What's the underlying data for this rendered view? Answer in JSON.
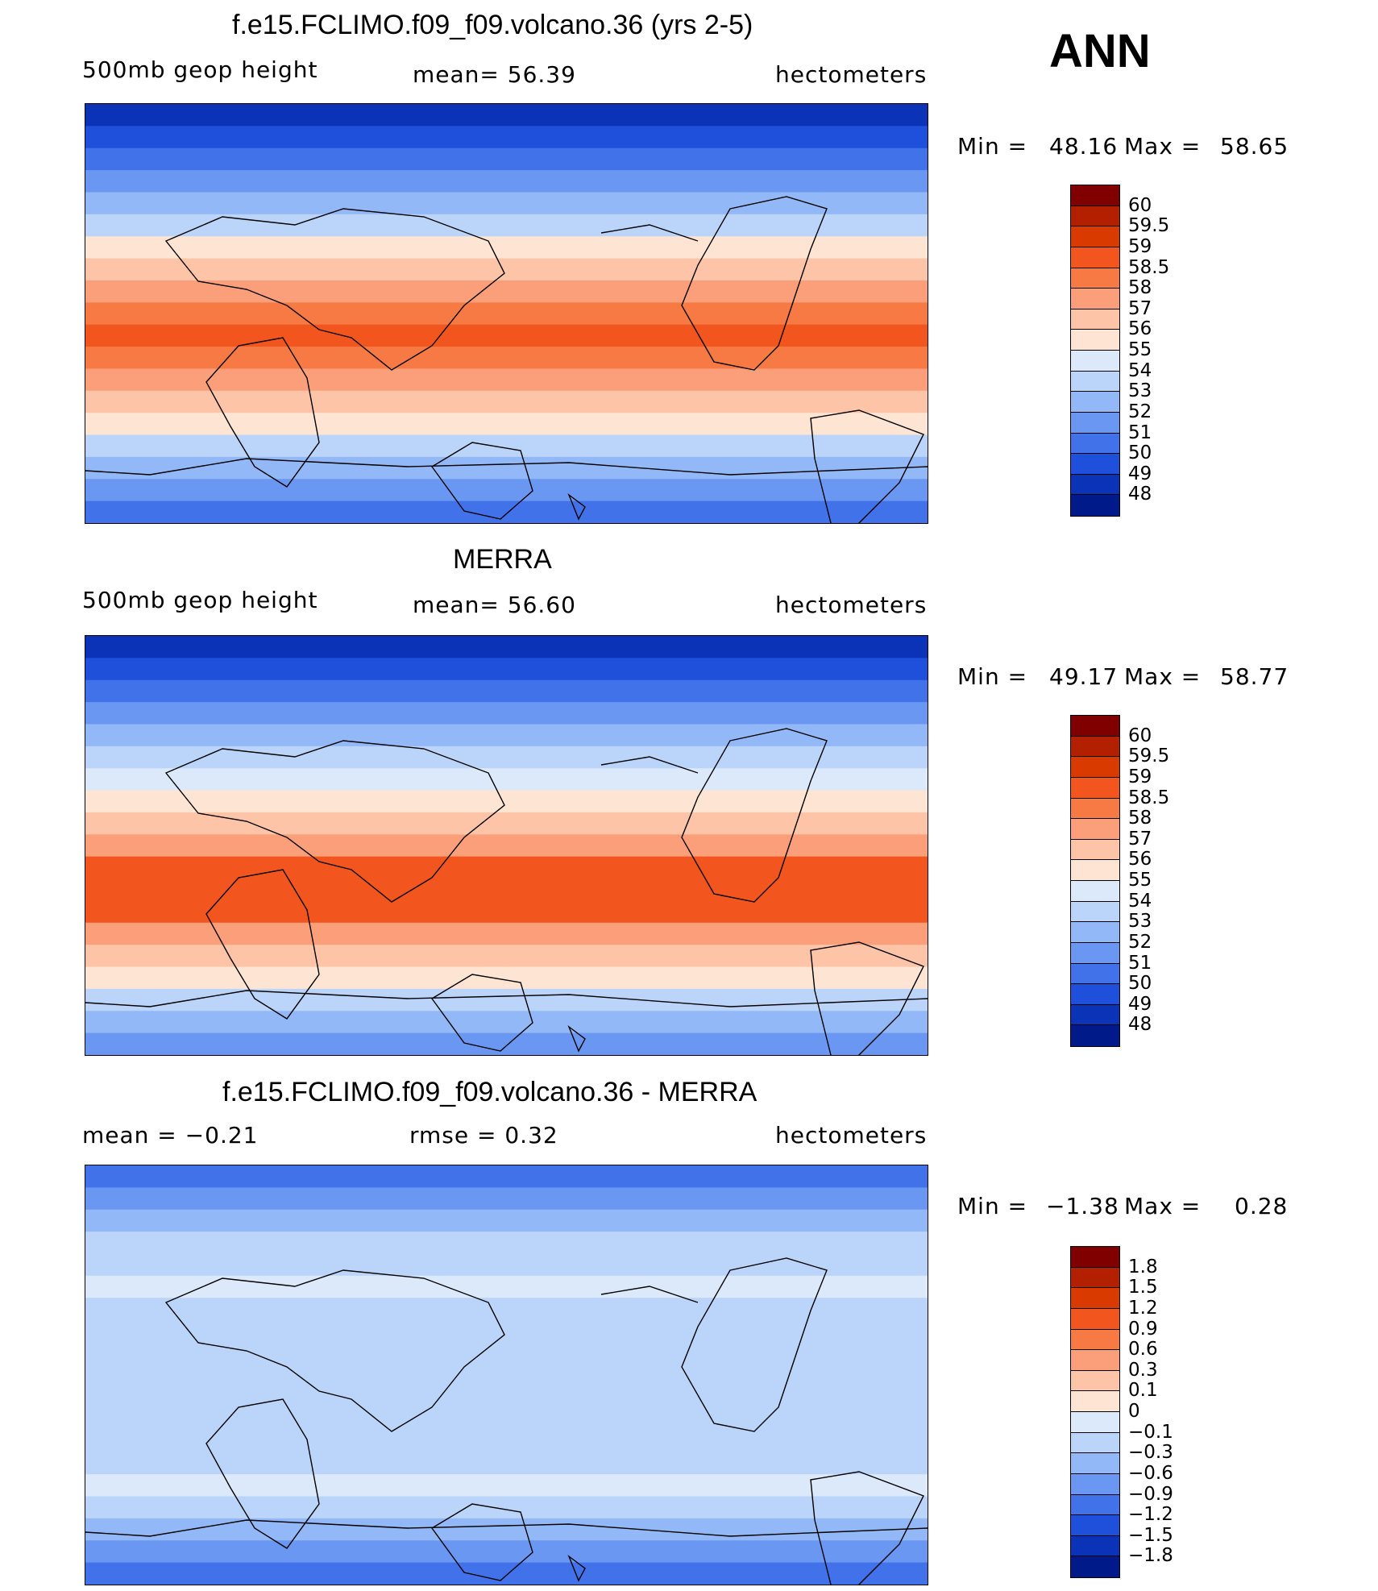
{
  "season": "ANN",
  "panels": [
    {
      "id": "model",
      "title": "f.e15.FCLIMO.f09_f09.volcano.36 (yrs 2-5)",
      "left_label": "500mb  geop  height",
      "center_label": "mean=   56.39",
      "right_label": "hectometers",
      "min_label": "Min  =",
      "min_value": "48.16",
      "max_label": "Max  =",
      "max_value": "58.65",
      "colorbar": {
        "labels": [
          "60",
          "59.5",
          "59",
          "58.5",
          "58",
          "57",
          "56",
          "55",
          "54",
          "53",
          "52",
          "51",
          "50",
          "49",
          "48"
        ],
        "colors": [
          "#800000",
          "#b22000",
          "#d93a00",
          "#f2561e",
          "#f77a45",
          "#fb9f7a",
          "#fdc4a8",
          "#fde4d3",
          "#dce9fb",
          "#bad4fa",
          "#93b8f7",
          "#6a97f2",
          "#4172ea",
          "#1e50dc",
          "#0a33b8",
          "#001a8a"
        ]
      },
      "map_bands": [
        "#0a33b8",
        "#1e50dc",
        "#4172ea",
        "#6a97f2",
        "#93b8f7",
        "#bad4fa",
        "#fde4d3",
        "#fdc4a8",
        "#fb9f7a",
        "#f77a45",
        "#f2561e",
        "#f77a45",
        "#fb9f7a",
        "#fdc4a8",
        "#fde4d3",
        "#bad4fa",
        "#93b8f7",
        "#6a97f2",
        "#4172ea"
      ]
    },
    {
      "id": "obs",
      "title": "MERRA",
      "left_label": "500mb  geop  height",
      "center_label": "mean=   56.60",
      "right_label": "hectometers",
      "min_label": "Min  =",
      "min_value": "49.17",
      "max_label": "Max  =",
      "max_value": "58.77",
      "colorbar": {
        "labels": [
          "60",
          "59.5",
          "59",
          "58.5",
          "58",
          "57",
          "56",
          "55",
          "54",
          "53",
          "52",
          "51",
          "50",
          "49",
          "48"
        ],
        "colors": [
          "#800000",
          "#b22000",
          "#d93a00",
          "#f2561e",
          "#f77a45",
          "#fb9f7a",
          "#fdc4a8",
          "#fde4d3",
          "#dce9fb",
          "#bad4fa",
          "#93b8f7",
          "#6a97f2",
          "#4172ea",
          "#1e50dc",
          "#0a33b8",
          "#001a8a"
        ]
      },
      "map_bands": [
        "#0a33b8",
        "#1e50dc",
        "#4172ea",
        "#6a97f2",
        "#93b8f7",
        "#bad4fa",
        "#dce9fb",
        "#fde4d3",
        "#fdc4a8",
        "#fb9f7a",
        "#f2561e",
        "#f2561e",
        "#f2561e",
        "#fb9f7a",
        "#fdc4a8",
        "#fde4d3",
        "#bad4fa",
        "#93b8f7",
        "#6a97f2"
      ]
    },
    {
      "id": "diff",
      "title": "f.e15.FCLIMO.f09_f09.volcano.36 - MERRA",
      "left_label": "mean  =    −0.21",
      "center_label": "rmse  =     0.32",
      "right_label": "hectometers",
      "min_label": "Min  =",
      "min_value": "−1.38",
      "max_label": "Max  =",
      "max_value": "0.28",
      "colorbar": {
        "labels": [
          "1.8",
          "1.5",
          "1.2",
          "0.9",
          "0.6",
          "0.3",
          "0.1",
          "0",
          "−0.1",
          "−0.3",
          "−0.6",
          "−0.9",
          "−1.2",
          "−1.5",
          "−1.8"
        ],
        "colors": [
          "#800000",
          "#b22000",
          "#d93a00",
          "#f2561e",
          "#f77a45",
          "#fb9f7a",
          "#fdc4a8",
          "#fde4d3",
          "#dce9fb",
          "#bad4fa",
          "#93b8f7",
          "#6a97f2",
          "#4172ea",
          "#1e50dc",
          "#0a33b8",
          "#001a8a"
        ]
      },
      "map_bands": [
        "#4172ea",
        "#6a97f2",
        "#93b8f7",
        "#bad4fa",
        "#bad4fa",
        "#dce9fb",
        "#bad4fa",
        "#bad4fa",
        "#bad4fa",
        "#bad4fa",
        "#bad4fa",
        "#bad4fa",
        "#bad4fa",
        "#bad4fa",
        "#dce9fb",
        "#bad4fa",
        "#93b8f7",
        "#6a97f2",
        "#4172ea"
      ]
    }
  ]
}
